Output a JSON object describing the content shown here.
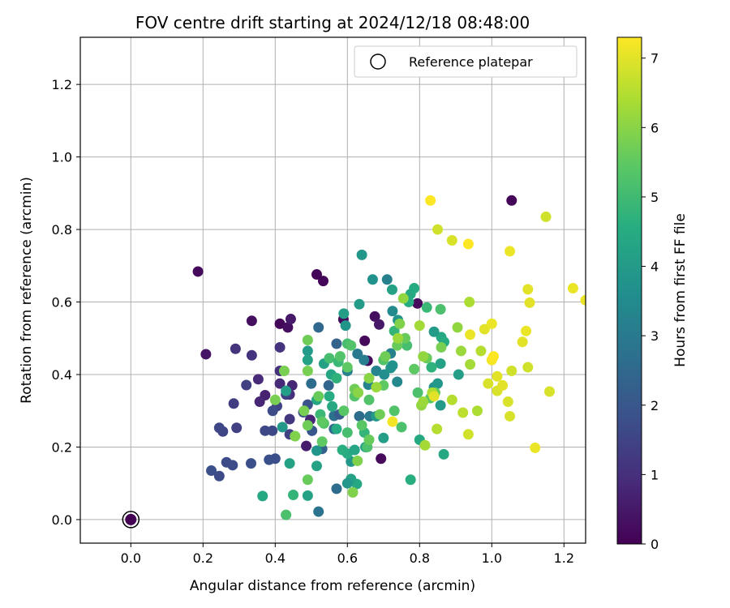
{
  "chart_data": {
    "type": "scatter",
    "title": "FOV centre drift starting at 2024/12/18 08:48:00",
    "xlabel": "Angular distance from reference (arcmin)",
    "ylabel": "Rotation from reference (arcmin)",
    "colorbar_label": "Hours from first FF file",
    "colormap": "viridis",
    "xlim": [
      -0.14,
      1.26
    ],
    "ylim": [
      -0.065,
      1.33
    ],
    "xticks": [
      0.0,
      0.2,
      0.4,
      0.6,
      0.8,
      1.0,
      1.2
    ],
    "xtick_labels": [
      "0.0",
      "0.2",
      "0.4",
      "0.6",
      "0.8",
      "1.0",
      "1.2"
    ],
    "yticks": [
      0.0,
      0.2,
      0.4,
      0.6,
      0.8,
      1.0,
      1.2
    ],
    "ytick_labels": [
      "0.0",
      "0.2",
      "0.4",
      "0.6",
      "0.8",
      "1.0",
      "1.2"
    ],
    "clim": [
      0,
      7.3
    ],
    "cticks": [
      0,
      1,
      2,
      3,
      4,
      5,
      6,
      7
    ],
    "ctick_labels": [
      "0",
      "1",
      "2",
      "3",
      "4",
      "5",
      "6",
      "7"
    ],
    "grid": true,
    "legend": {
      "position": "top-right",
      "entries": [
        "Reference platepar"
      ]
    },
    "reference_point": [
      0.0,
      0.0
    ],
    "series": [
      {
        "points": [
          [
            0.186,
            0.684,
            0.2
          ],
          [
            0.208,
            0.456,
            0.4
          ],
          [
            0.335,
            0.548,
            0.3
          ],
          [
            0.413,
            0.54,
            0.1
          ],
          [
            0.435,
            0.53,
            0.3
          ],
          [
            0.443,
            0.553,
            0.5
          ],
          [
            0.515,
            0.676,
            0.1
          ],
          [
            0.533,
            0.658,
            0.1
          ],
          [
            0.589,
            0.552,
            0.2
          ],
          [
            0.656,
            0.438,
            0.2
          ],
          [
            0.676,
            0.56,
            0.3
          ],
          [
            0.688,
            0.538,
            0.5
          ],
          [
            0.693,
            0.168,
            0.2
          ],
          [
            0.794,
            0.596,
            0.2
          ],
          [
            0.648,
            0.493,
            0.2
          ],
          [
            0.486,
            0.203,
            0.6
          ],
          [
            0.497,
            0.275,
            0.8
          ],
          [
            0.447,
            0.37,
            0.8
          ],
          [
            0.44,
            0.345,
            1.0
          ],
          [
            0.413,
            0.41,
            1.0
          ],
          [
            0.413,
            0.475,
            1.1
          ],
          [
            0.413,
            0.375,
            0.9
          ],
          [
            0.353,
            0.387,
            0.9
          ],
          [
            0.372,
            0.343,
            0.7
          ],
          [
            0.357,
            0.325,
            0.8
          ],
          [
            0.335,
            0.453,
            1.1
          ],
          [
            0.29,
            0.471,
            1.1
          ],
          [
            0.285,
            0.32,
            1.3
          ],
          [
            0.32,
            0.371,
            1.4
          ],
          [
            0.293,
            0.253,
            1.4
          ],
          [
            0.255,
            0.243,
            1.5
          ],
          [
            0.245,
            0.253,
            1.6
          ],
          [
            0.265,
            0.158,
            1.7
          ],
          [
            0.282,
            0.15,
            1.7
          ],
          [
            0.223,
            0.135,
            1.8
          ],
          [
            0.245,
            0.12,
            1.7
          ],
          [
            0.333,
            0.155,
            1.8
          ],
          [
            0.383,
            0.165,
            1.8
          ],
          [
            0.4,
            0.168,
            1.8
          ],
          [
            0.392,
            0.245,
            1.6
          ],
          [
            0.405,
            0.313,
            1.5
          ],
          [
            0.44,
            0.277,
            1.2
          ],
          [
            0.44,
            0.235,
            1.4
          ],
          [
            0.372,
            0.245,
            1.6
          ],
          [
            0.393,
            0.3,
            1.7
          ],
          [
            0.43,
            0.345,
            1.4
          ],
          [
            0.478,
            0.296,
            1.8
          ],
          [
            0.49,
            0.317,
            1.9
          ],
          [
            0.502,
            0.245,
            2.0
          ],
          [
            0.53,
            0.195,
            2.3
          ],
          [
            0.52,
            0.53,
            2.5
          ],
          [
            0.5,
            0.375,
            2.6
          ],
          [
            0.548,
            0.37,
            2.4
          ],
          [
            0.563,
            0.286,
            2.7
          ],
          [
            0.563,
            0.25,
            2.4
          ],
          [
            0.578,
            0.29,
            2.1
          ],
          [
            0.57,
            0.485,
            2.3
          ],
          [
            0.633,
            0.285,
            2.6
          ],
          [
            0.662,
            0.285,
            3.0
          ],
          [
            0.628,
            0.457,
            3.0
          ],
          [
            0.646,
            0.44,
            3.1
          ],
          [
            0.6,
            0.41,
            3.2
          ],
          [
            0.57,
            0.085,
            2.6
          ],
          [
            0.52,
            0.022,
            2.8
          ],
          [
            0.72,
            0.458,
            3.2
          ],
          [
            0.658,
            0.372,
            3.3
          ],
          [
            0.738,
            0.38,
            3.4
          ],
          [
            0.68,
            0.41,
            3.3
          ],
          [
            0.702,
            0.4,
            3.6
          ],
          [
            0.72,
            0.418,
            3.8
          ],
          [
            0.725,
            0.425,
            3.7
          ],
          [
            0.725,
            0.575,
            3.5
          ],
          [
            0.74,
            0.55,
            3.7
          ],
          [
            0.71,
            0.662,
            3.2
          ],
          [
            0.67,
            0.662,
            3.7
          ],
          [
            0.64,
            0.73,
            3.9
          ],
          [
            0.59,
            0.568,
            4.1
          ],
          [
            0.595,
            0.535,
            3.8
          ],
          [
            0.633,
            0.594,
            4.0
          ],
          [
            0.724,
            0.634,
            4.2
          ],
          [
            0.775,
            0.622,
            4.4
          ],
          [
            0.785,
            0.638,
            4.5
          ],
          [
            0.77,
            0.6,
            4.5
          ],
          [
            0.86,
            0.503,
            4.4
          ],
          [
            0.84,
            0.518,
            4.0
          ],
          [
            0.84,
            0.365,
            3.7
          ],
          [
            0.85,
            0.375,
            3.9
          ],
          [
            0.858,
            0.43,
            4.2
          ],
          [
            0.858,
            0.315,
            4.0
          ],
          [
            0.8,
            0.22,
            4.4
          ],
          [
            0.775,
            0.11,
            4.6
          ],
          [
            0.867,
            0.18,
            4.4
          ],
          [
            0.833,
            0.42,
            4.7
          ],
          [
            0.868,
            0.49,
            4.5
          ],
          [
            0.908,
            0.4,
            4.1
          ],
          [
            0.7,
            0.225,
            4.1
          ],
          [
            0.68,
            0.285,
            4.0
          ],
          [
            0.65,
            0.2,
            4.2
          ],
          [
            0.647,
            0.24,
            4.8
          ],
          [
            0.626,
            0.098,
            4.4
          ],
          [
            0.61,
            0.112,
            4.2
          ],
          [
            0.6,
            0.1,
            3.9
          ],
          [
            0.61,
            0.16,
            3.9
          ],
          [
            0.6,
            0.182,
            4.5
          ],
          [
            0.62,
            0.192,
            4.3
          ],
          [
            0.586,
            0.192,
            4.6
          ],
          [
            0.558,
            0.312,
            4.4
          ],
          [
            0.515,
            0.19,
            3.8
          ],
          [
            0.515,
            0.148,
            4.2
          ],
          [
            0.45,
            0.068,
            4.8
          ],
          [
            0.43,
            0.013,
            5.2
          ],
          [
            0.49,
            0.066,
            4.2
          ],
          [
            0.365,
            0.065,
            4.4
          ],
          [
            0.42,
            0.255,
            3.9
          ],
          [
            0.44,
            0.155,
            4.2
          ],
          [
            0.43,
            0.355,
            4.1
          ],
          [
            0.49,
            0.465,
            4.0
          ],
          [
            0.49,
            0.44,
            4.2
          ],
          [
            0.515,
            0.33,
            4.3
          ],
          [
            0.535,
            0.43,
            4.2
          ],
          [
            0.57,
            0.25,
            4.5
          ],
          [
            0.555,
            0.4,
            4.3
          ],
          [
            0.57,
            0.39,
            4.7
          ],
          [
            0.525,
            0.29,
            4.9
          ],
          [
            0.55,
            0.34,
            4.5
          ],
          [
            0.55,
            0.445,
            5.1
          ],
          [
            0.575,
            0.435,
            4.9
          ],
          [
            0.6,
            0.485,
            5.1
          ],
          [
            0.61,
            0.48,
            5.3
          ],
          [
            0.7,
            0.44,
            5.3
          ],
          [
            0.7,
            0.37,
            5.5
          ],
          [
            0.73,
            0.3,
            5.3
          ],
          [
            0.75,
            0.255,
            5.2
          ],
          [
            0.73,
            0.52,
            4.8
          ],
          [
            0.765,
            0.48,
            5.1
          ],
          [
            0.795,
            0.35,
            5.2
          ],
          [
            0.785,
            0.415,
            5.5
          ],
          [
            0.83,
            0.335,
            5.4
          ],
          [
            0.843,
            0.35,
            5.6
          ],
          [
            0.82,
            0.445,
            5.6
          ],
          [
            0.86,
            0.475,
            5.8
          ],
          [
            0.858,
            0.58,
            5.2
          ],
          [
            0.82,
            0.585,
            4.9
          ],
          [
            0.76,
            0.5,
            5.6
          ],
          [
            0.738,
            0.48,
            5.6
          ],
          [
            0.705,
            0.45,
            5.7
          ],
          [
            0.69,
            0.29,
            5.7
          ],
          [
            0.66,
            0.33,
            5.3
          ],
          [
            0.655,
            0.2,
            5.2
          ],
          [
            0.66,
            0.22,
            5.6
          ],
          [
            0.64,
            0.26,
            5.4
          ],
          [
            0.62,
            0.34,
            5.3
          ],
          [
            0.6,
            0.24,
            5.1
          ],
          [
            0.59,
            0.3,
            5.4
          ],
          [
            0.62,
            0.36,
            5.7
          ],
          [
            0.6,
            0.42,
            5.5
          ],
          [
            0.58,
            0.45,
            5.3
          ],
          [
            0.535,
            0.265,
            5.3
          ],
          [
            0.53,
            0.27,
            5.5
          ],
          [
            0.53,
            0.215,
            5.5
          ],
          [
            0.52,
            0.34,
            5.6
          ],
          [
            0.49,
            0.495,
            5.7
          ],
          [
            0.49,
            0.41,
            5.8
          ],
          [
            0.49,
            0.26,
            5.7
          ],
          [
            0.48,
            0.3,
            5.8
          ],
          [
            0.49,
            0.11,
            5.6
          ],
          [
            0.455,
            0.23,
            5.5
          ],
          [
            0.4,
            0.33,
            5.8
          ],
          [
            0.425,
            0.41,
            5.8
          ],
          [
            0.455,
            0.23,
            5.9
          ],
          [
            0.615,
            0.075,
            5.9
          ],
          [
            0.628,
            0.162,
            5.9
          ],
          [
            0.63,
            0.35,
            6.0
          ],
          [
            0.66,
            0.39,
            6.0
          ],
          [
            0.68,
            0.365,
            6.2
          ],
          [
            0.74,
            0.5,
            6.2
          ],
          [
            0.745,
            0.54,
            5.9
          ],
          [
            0.755,
            0.61,
            6.1
          ],
          [
            0.8,
            0.535,
            6.3
          ],
          [
            0.81,
            0.45,
            6.1
          ],
          [
            0.805,
            0.315,
            6.1
          ],
          [
            0.81,
            0.325,
            6.2
          ],
          [
            0.835,
            0.35,
            6.4
          ],
          [
            0.848,
            0.25,
            6.5
          ],
          [
            0.815,
            0.205,
            6.3
          ],
          [
            0.89,
            0.33,
            6.5
          ],
          [
            0.905,
            0.53,
            6.1
          ],
          [
            0.915,
            0.465,
            6.2
          ],
          [
            0.938,
            0.6,
            6.4
          ],
          [
            0.94,
            0.428,
            6.3
          ],
          [
            0.96,
            0.3,
            6.4
          ],
          [
            0.97,
            0.465,
            6.5
          ],
          [
            0.92,
            0.295,
            6.6
          ],
          [
            0.935,
            0.235,
            6.8
          ],
          [
            0.85,
            0.8,
            6.8
          ],
          [
            0.89,
            0.77,
            6.9
          ],
          [
            0.84,
            0.34,
            7.0
          ],
          [
            0.725,
            0.27,
            7.2
          ],
          [
            0.83,
            0.88,
            7.3
          ],
          [
            0.935,
            0.76,
            7.3
          ],
          [
            0.94,
            0.51,
            7.1
          ],
          [
            0.98,
            0.525,
            7.0
          ],
          [
            0.99,
            0.375,
            6.9
          ],
          [
            1.0,
            0.54,
            7.1
          ],
          [
            1.0,
            0.44,
            7.2
          ],
          [
            1.005,
            0.45,
            7.3
          ],
          [
            1.015,
            0.395,
            7.0
          ],
          [
            1.015,
            0.355,
            6.9
          ],
          [
            1.03,
            0.37,
            7.0
          ],
          [
            1.045,
            0.325,
            6.9
          ],
          [
            1.05,
            0.285,
            6.9
          ],
          [
            1.055,
            0.41,
            6.8
          ],
          [
            1.05,
            0.74,
            7.1
          ],
          [
            1.085,
            0.49,
            7.0
          ],
          [
            1.095,
            0.52,
            7.1
          ],
          [
            1.1,
            0.635,
            7.0
          ],
          [
            1.1,
            0.42,
            6.8
          ],
          [
            1.105,
            0.598,
            7.0
          ],
          [
            1.12,
            0.198,
            7.1
          ],
          [
            1.15,
            0.835,
            6.8
          ],
          [
            1.16,
            0.353,
            6.9
          ],
          [
            1.225,
            0.638,
            7.1
          ],
          [
            1.26,
            0.605,
            7.1
          ],
          [
            1.055,
            0.88,
            0.1
          ]
        ]
      }
    ]
  }
}
